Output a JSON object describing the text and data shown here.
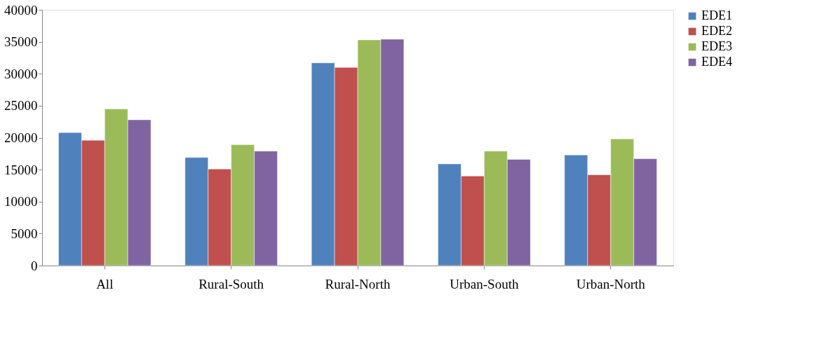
{
  "chart_data": {
    "type": "bar",
    "categories": [
      "All",
      "Rural-South",
      "Rural-North",
      "Urban-South",
      "Urban-North"
    ],
    "series": [
      {
        "name": "EDE1",
        "color": "#4f81bd",
        "values": [
          20800,
          16900,
          31700,
          15900,
          17300
        ]
      },
      {
        "name": "EDE2",
        "color": "#c0504d",
        "values": [
          19600,
          15100,
          31000,
          14000,
          14200
        ]
      },
      {
        "name": "EDE3",
        "color": "#9bbb59",
        "values": [
          24500,
          18900,
          35300,
          17900,
          19800
        ]
      },
      {
        "name": "EDE4",
        "color": "#8064a2",
        "values": [
          22800,
          17900,
          35400,
          16600,
          16700
        ]
      }
    ],
    "ylim": [
      0,
      40000
    ],
    "yticks": [
      0,
      5000,
      10000,
      15000,
      20000,
      25000,
      30000,
      35000,
      40000
    ],
    "grid": false,
    "legend": "right"
  }
}
